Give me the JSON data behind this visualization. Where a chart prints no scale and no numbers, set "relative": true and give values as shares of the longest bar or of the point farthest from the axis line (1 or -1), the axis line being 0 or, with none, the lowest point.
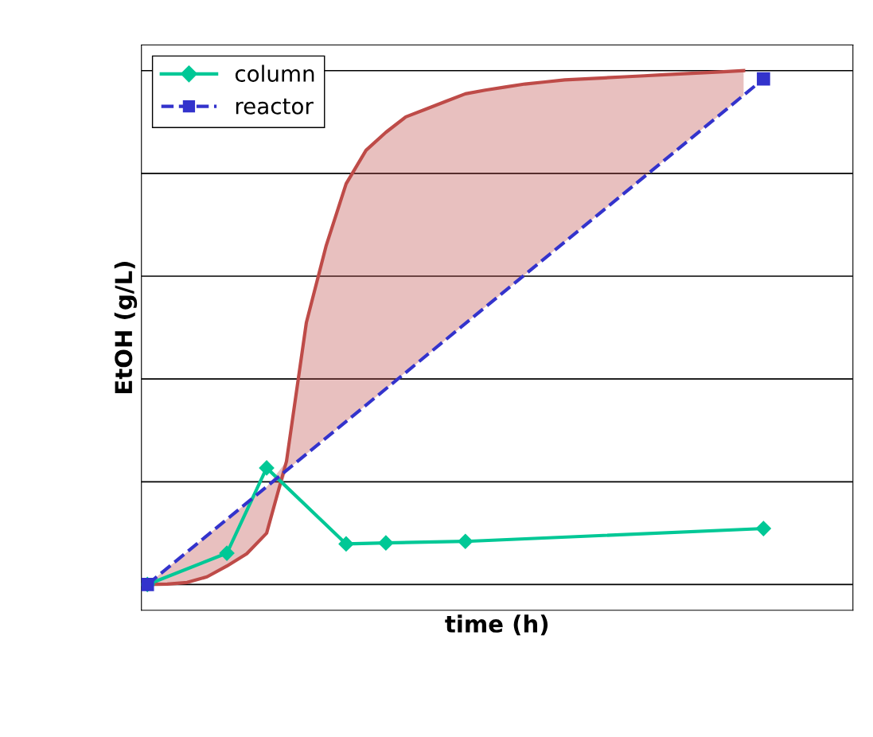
{
  "chart_data": {
    "type": "line",
    "relative": true,
    "xlabel": "time (h)",
    "ylabel": "EtOH (g/L)",
    "grid": "y",
    "legend": "top left",
    "tick_labels": false,
    "categories": [
      null,
      null,
      null,
      null,
      null,
      null,
      null,
      null,
      null,
      null,
      null,
      null,
      null,
      null,
      null,
      null,
      null,
      null,
      null,
      null,
      null,
      null,
      null,
      null,
      null,
      null,
      null,
      null,
      null,
      null,
      null,
      null
    ],
    "series": [
      {
        "color": "#be4b48",
        "marker": "none",
        "line_style": "solid",
        "values": [
          0,
          0.001,
          0.004,
          0.015,
          0.036,
          0.06,
          0.1,
          0.24,
          0.51,
          0.66,
          0.78,
          0.845,
          0.88,
          0.91,
          0.925,
          0.94,
          0.955,
          0.962,
          0.968,
          0.974,
          0.978,
          0.982,
          0.984,
          0.986,
          0.988,
          0.99,
          0.992,
          0.994,
          0.996,
          0.998,
          1.0,
          null
        ],
        "lower": [
          0,
          0.001,
          0.004,
          0.015,
          0.036,
          0.06,
          0.1,
          0.222,
          0.254,
          0.286,
          0.317,
          0.349,
          0.381,
          0.413,
          0.444,
          0.476,
          0.508,
          0.54,
          0.571,
          0.603,
          0.635,
          0.667,
          0.698,
          0.73,
          0.762,
          0.794,
          0.825,
          0.857,
          0.889,
          0.92,
          0.952,
          null
        ],
        "upper": [
          0,
          0.032,
          0.063,
          0.095,
          0.127,
          0.159,
          0.19,
          0.24,
          0.51,
          0.66,
          0.78,
          0.845,
          0.88,
          0.91,
          0.925,
          0.94,
          0.955,
          0.962,
          0.968,
          0.974,
          0.978,
          0.982,
          0.984,
          0.986,
          0.988,
          0.99,
          0.992,
          0.994,
          0.996,
          0.998,
          1.0,
          null
        ]
      },
      {
        "name": "column",
        "color": "#00c896",
        "marker": "diamond",
        "line_style": "solid",
        "values": [
          0,
          null,
          null,
          null,
          0.061,
          null,
          0.227,
          null,
          null,
          null,
          0.079,
          null,
          0.081,
          null,
          null,
          null,
          0.084,
          null,
          null,
          null,
          null,
          null,
          null,
          null,
          null,
          null,
          null,
          null,
          null,
          null,
          null,
          0.109
        ]
      },
      {
        "name": "reactor",
        "color": "#3333cc",
        "marker": "square",
        "line_style": "dashed",
        "values": [
          0,
          null,
          null,
          null,
          null,
          null,
          null,
          null,
          null,
          null,
          null,
          null,
          null,
          null,
          null,
          null,
          null,
          null,
          null,
          null,
          null,
          null,
          null,
          null,
          null,
          null,
          null,
          null,
          null,
          null,
          null,
          0.984
        ]
      }
    ]
  }
}
